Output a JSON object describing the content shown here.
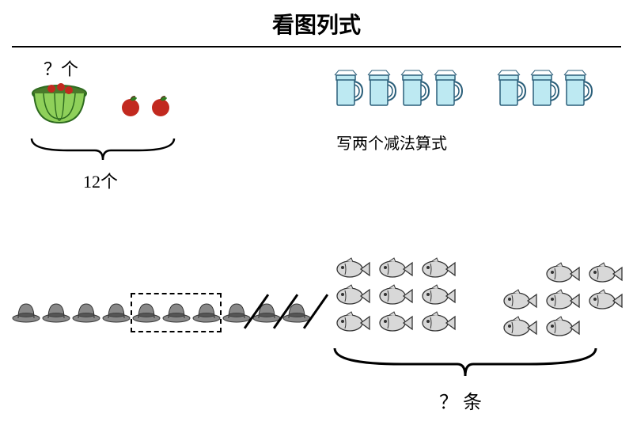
{
  "title": "看图列式",
  "panel1": {
    "question_label": "？个",
    "total_label": "12个",
    "apples_count": 2,
    "colors": {
      "basket": "#8fd05a",
      "basket_stroke": "#2e6b1f",
      "apple": "#c2291f",
      "leaf": "#2e7d1f"
    }
  },
  "panel2": {
    "group1_count": 4,
    "group2_count": 3,
    "caption": "写两个减法算式",
    "colors": {
      "cup_fill": "#bde9f2",
      "cup_stroke": "#2b5f7a"
    }
  },
  "panel3": {
    "total_hats": 10,
    "boxed_start": 4,
    "boxed_end": 6,
    "crossed_start": 8,
    "colors": {
      "hat_fill": "#888888",
      "hat_stroke": "#333333"
    }
  },
  "panel4": {
    "group1_count": 9,
    "group2_count": 7,
    "question_label": "？条",
    "colors": {
      "fish_fill": "#d8d8d8",
      "fish_stroke": "#333333"
    }
  }
}
